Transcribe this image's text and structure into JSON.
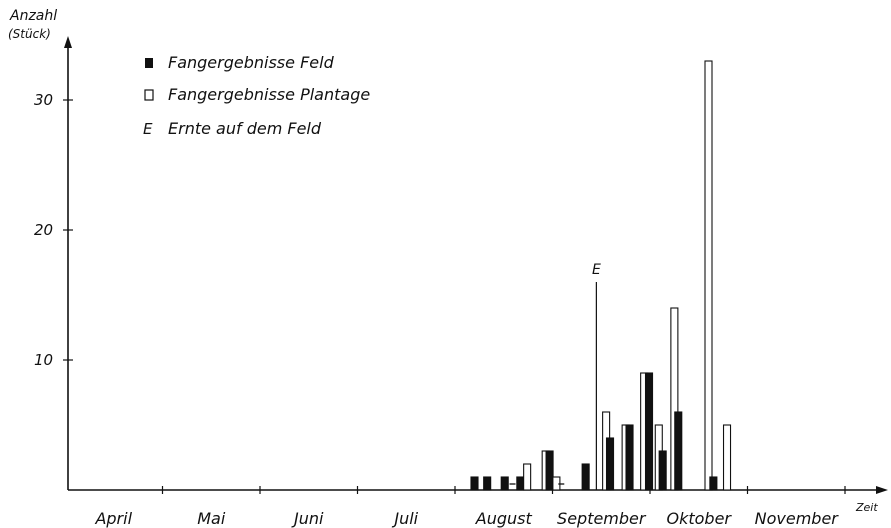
{
  "chart_data": {
    "type": "bar",
    "ylabel": "Anzahl",
    "ylabel_unit": "(Stück)",
    "xlabel": "Zeit",
    "ylim": [
      0,
      34
    ],
    "yticks": [
      10,
      20,
      30
    ],
    "months": [
      "April",
      "Mai",
      "Juni",
      "Juli",
      "August",
      "September",
      "Oktober",
      "November"
    ],
    "legend": {
      "placement": "top-left",
      "entries": [
        {
          "key": "feld",
          "marker": "filled-square",
          "label": "Fangergebnisse Feld"
        },
        {
          "key": "plantage",
          "marker": "open-square",
          "label": "Fangergebnisse Plantage"
        },
        {
          "key": "ernte",
          "marker": "E",
          "label": "Ernte auf dem Feld"
        }
      ]
    },
    "harvest_marker": {
      "label": "E",
      "month_position": 5.45,
      "height": 16
    },
    "bars": [
      {
        "series": "feld",
        "month_position": 4.2,
        "value": 1
      },
      {
        "series": "feld",
        "month_position": 4.33,
        "value": 1
      },
      {
        "series": "feld",
        "month_position": 4.51,
        "value": 1
      },
      {
        "series": "feld",
        "month_position": 4.67,
        "value": 1
      },
      {
        "series": "plantage",
        "month_position": 4.74,
        "value": 2
      },
      {
        "series": "plantage",
        "month_position": 4.93,
        "value": 3
      },
      {
        "series": "feld",
        "month_position": 4.97,
        "value": 3
      },
      {
        "series": "plantage",
        "month_position": 5.04,
        "value": 1
      },
      {
        "series": "feld",
        "month_position": 5.34,
        "value": 2
      },
      {
        "series": "plantage",
        "month_position": 5.55,
        "value": 6
      },
      {
        "series": "feld",
        "month_position": 5.59,
        "value": 4
      },
      {
        "series": "plantage",
        "month_position": 5.75,
        "value": 5
      },
      {
        "series": "feld",
        "month_position": 5.79,
        "value": 5
      },
      {
        "series": "plantage",
        "month_position": 5.94,
        "value": 9
      },
      {
        "series": "feld",
        "month_position": 5.99,
        "value": 9
      },
      {
        "series": "plantage",
        "month_position": 6.09,
        "value": 5
      },
      {
        "series": "feld",
        "month_position": 6.13,
        "value": 3
      },
      {
        "series": "plantage",
        "month_position": 6.25,
        "value": 14
      },
      {
        "series": "feld",
        "month_position": 6.29,
        "value": 6
      },
      {
        "series": "plantage",
        "month_position": 6.6,
        "value": 33
      },
      {
        "series": "feld",
        "month_position": 6.65,
        "value": 1
      },
      {
        "series": "plantage",
        "month_position": 6.79,
        "value": 5
      }
    ],
    "dash_marks": [
      {
        "series": "feld",
        "month_position": 4.59
      },
      {
        "series": "plantage",
        "month_position": 5.09
      }
    ]
  }
}
